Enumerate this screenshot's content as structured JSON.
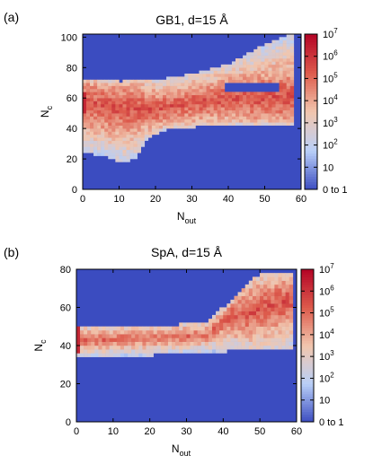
{
  "chart_data": [
    {
      "type": "heatmap",
      "panel_label": "(a)",
      "title": "GB1, d=15 Å",
      "xlabel": "N",
      "xlabel_sub": "out",
      "ylabel": "N",
      "ylabel_sub": "c",
      "xlim": [
        0,
        60
      ],
      "ylim": [
        0,
        102
      ],
      "xticks": [
        "0",
        "10",
        "20",
        "30",
        "40",
        "50",
        "60"
      ],
      "yticks": [
        "0",
        "20",
        "40",
        "60",
        "80",
        "100"
      ],
      "colorbar": {
        "scale": "log",
        "range": [
          1,
          10000000
        ],
        "colors": [
          "#3b4cc0",
          "#b9cff7",
          "#f1c6ae",
          "#dd5b4c",
          "#b40426"
        ],
        "ticks": [
          {
            "base": "0 to 1",
            "exp": ""
          },
          {
            "base": "10",
            "exp": ""
          },
          {
            "base": "10",
            "exp": "2"
          },
          {
            "base": "10",
            "exp": "3"
          },
          {
            "base": "10",
            "exp": "4"
          },
          {
            "base": "10",
            "exp": "5"
          },
          {
            "base": "10",
            "exp": "6"
          },
          {
            "base": "10",
            "exp": "7"
          }
        ]
      },
      "region_nout_max": 57,
      "region_lower": [
        [
          0,
          24
        ],
        [
          5,
          22
        ],
        [
          10,
          18
        ],
        [
          14,
          20
        ],
        [
          17,
          33
        ],
        [
          22,
          39
        ],
        [
          30,
          41
        ],
        [
          40,
          42
        ],
        [
          50,
          42
        ],
        [
          57,
          42
        ]
      ],
      "region_upper": [
        [
          0,
          72
        ],
        [
          10,
          70
        ],
        [
          20,
          71
        ],
        [
          30,
          75
        ],
        [
          40,
          82
        ],
        [
          50,
          95
        ],
        [
          57,
          102
        ]
      ],
      "ridge": [
        [
          0,
          56
        ],
        [
          10,
          52
        ],
        [
          20,
          52
        ],
        [
          30,
          56
        ],
        [
          40,
          59
        ],
        [
          50,
          59
        ],
        [
          57,
          60
        ]
      ],
      "hole": {
        "nout": [
          39,
          53
        ],
        "nc": [
          63,
          68
        ]
      }
    },
    {
      "type": "heatmap",
      "panel_label": "(b)",
      "title": "SpA, d=15 Å",
      "xlabel": "N",
      "xlabel_sub": "out",
      "ylabel": "N",
      "ylabel_sub": "c",
      "xlim": [
        0,
        60
      ],
      "ylim": [
        0,
        80
      ],
      "xticks": [
        "0",
        "10",
        "20",
        "30",
        "40",
        "50",
        "60"
      ],
      "yticks": [
        "0",
        "20",
        "40",
        "60",
        "80"
      ],
      "colorbar": {
        "scale": "log",
        "range": [
          1,
          10000000
        ],
        "colors": [
          "#3b4cc0",
          "#b9cff7",
          "#f1c6ae",
          "#dd5b4c",
          "#b40426"
        ],
        "ticks": [
          {
            "base": "0 to 1",
            "exp": ""
          },
          {
            "base": "10",
            "exp": ""
          },
          {
            "base": "10",
            "exp": "2"
          },
          {
            "base": "10",
            "exp": "3"
          },
          {
            "base": "10",
            "exp": "4"
          },
          {
            "base": "10",
            "exp": "5"
          },
          {
            "base": "10",
            "exp": "6"
          },
          {
            "base": "10",
            "exp": "7"
          }
        ]
      },
      "region_nout_max": 58,
      "region_lower": [
        [
          0,
          35
        ],
        [
          20,
          35
        ],
        [
          35,
          36
        ],
        [
          40,
          37
        ],
        [
          50,
          38
        ],
        [
          58,
          38
        ]
      ],
      "region_upper": [
        [
          0,
          49
        ],
        [
          20,
          49
        ],
        [
          35,
          51
        ],
        [
          40,
          60
        ],
        [
          45,
          70
        ],
        [
          50,
          77
        ],
        [
          58,
          78
        ]
      ],
      "ridge": [
        [
          0,
          43
        ],
        [
          20,
          44
        ],
        [
          35,
          46
        ],
        [
          40,
          53
        ],
        [
          50,
          58
        ],
        [
          58,
          63
        ]
      ],
      "hole": null
    }
  ]
}
